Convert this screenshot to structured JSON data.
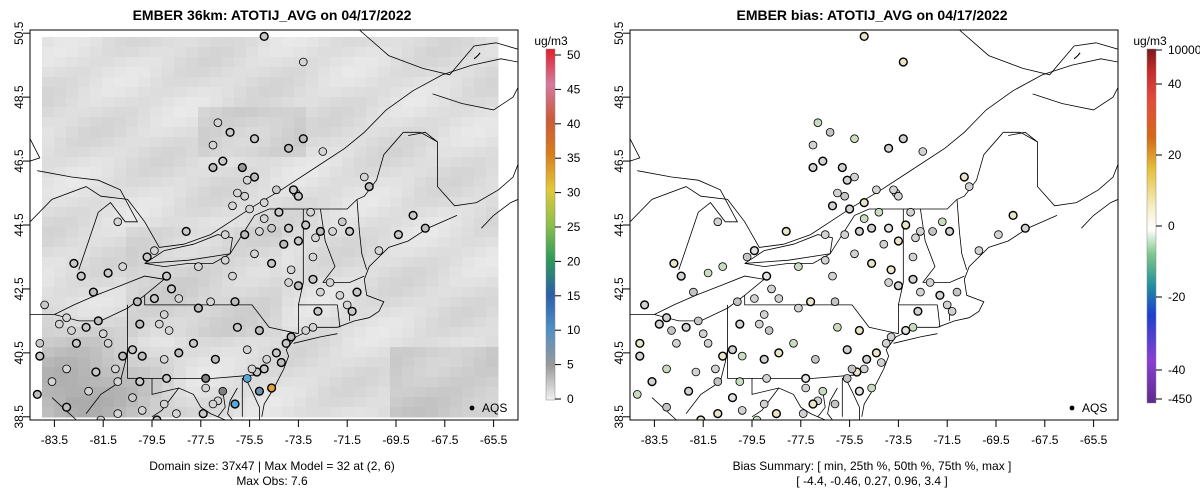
{
  "chart_data": [
    {
      "type": "map-heatmap",
      "title": "EMBER 36km: ATOTIJ_AVG on 04/17/2022",
      "xlim": [
        -84.5,
        -64.5
      ],
      "ylim": [
        38.4,
        50.6
      ],
      "x_ticks": [
        "-83.5",
        "-81.5",
        "-79.5",
        "-77.5",
        "-75.5",
        "-73.5",
        "-71.5",
        "-69.5",
        "-67.5",
        "-65.5"
      ],
      "y_ticks": [
        "38.5",
        "40.5",
        "42.5",
        "44.5",
        "46.5",
        "48.5",
        "50.5"
      ],
      "colorbar": {
        "unit": "ug/m3",
        "ticks": [
          "0",
          "5",
          "10",
          "15",
          "20",
          "25",
          "30",
          "35",
          "40",
          "45",
          "50"
        ],
        "min": 0,
        "max": 50
      },
      "legend": "AQS",
      "subtitle_lines": [
        "Domain size: 37x47 | Max Model = 32 at (2, 6)",
        "Max Obs: 7.6"
      ],
      "grid_shading": "mostly light gray 1-6 ug/m3, darker over West Virginia/Virginia corner"
    },
    {
      "type": "map-scatter",
      "title": "EMBER bias: ATOTIJ_AVG on 04/17/2022",
      "xlim": [
        -84.5,
        -64.5
      ],
      "ylim": [
        38.4,
        50.6
      ],
      "x_ticks": [
        "-83.5",
        "-81.5",
        "-79.5",
        "-77.5",
        "-75.5",
        "-73.5",
        "-71.5",
        "-69.5",
        "-67.5",
        "-65.5"
      ],
      "y_ticks": [
        "38.5",
        "40.5",
        "42.5",
        "44.5",
        "46.5",
        "48.5",
        "50.5"
      ],
      "colorbar": {
        "unit": "ug/m3",
        "ticks": [
          "10000",
          "40",
          "20",
          "0",
          "-20",
          "-40",
          "-450"
        ]
      },
      "legend": "AQS",
      "subtitle_lines": [
        "Bias Summary: [ min, 25th %, 50th %, 75th %, max ]",
        "[ -4.4,   -0.46,  0.27,   0.96,   3.4 ]"
      ],
      "bias_summary": {
        "min": -4.4,
        "p25": -0.46,
        "p50": 0.27,
        "p75": 0.96,
        "max": 3.4
      }
    }
  ],
  "colors": {
    "map_lines": "#000000",
    "frame": "#000000",
    "station_gray": "#cfcfcf",
    "accent_orange": "#e5a13a",
    "accent_blue": "#54a9de"
  }
}
